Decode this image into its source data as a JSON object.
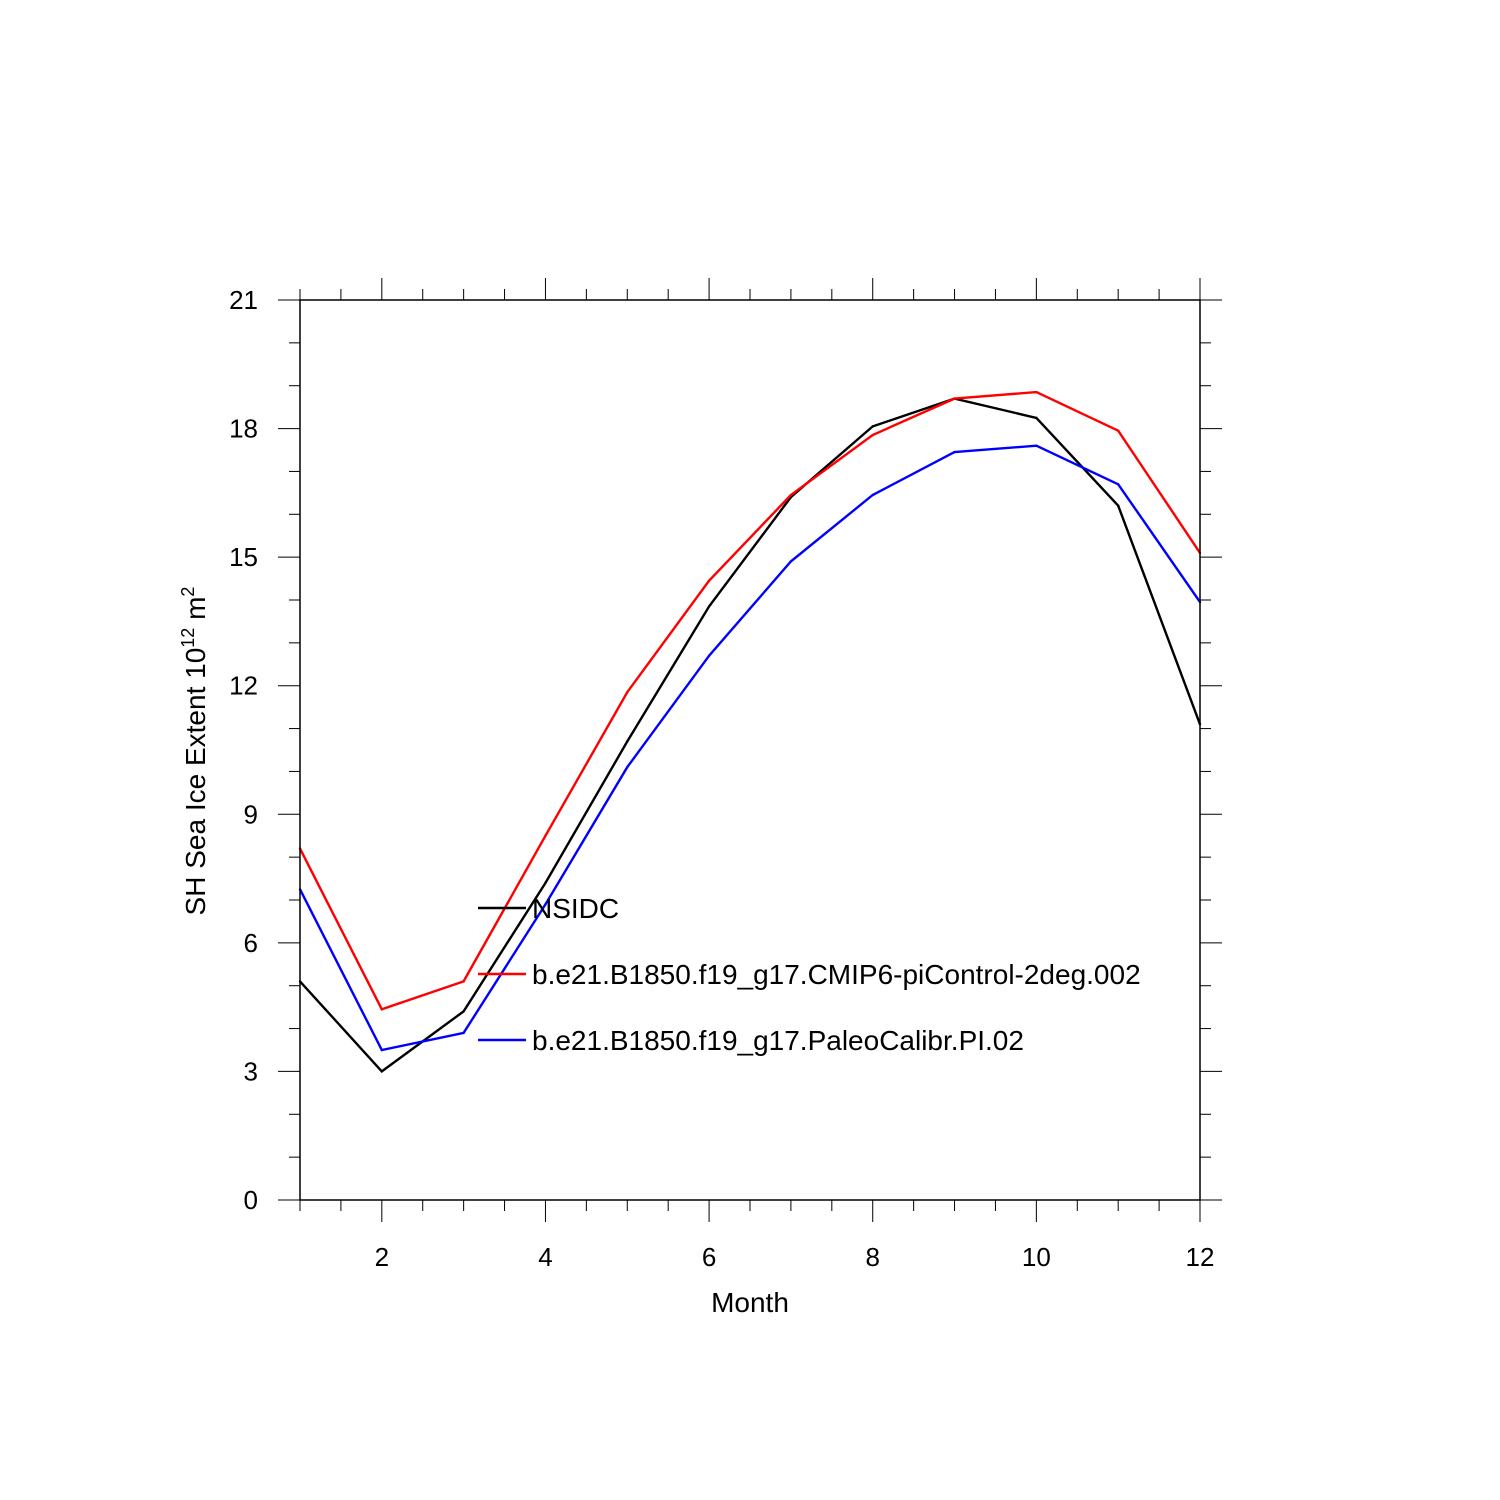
{
  "chart_data": {
    "type": "line",
    "title": "",
    "xlabel": "Month",
    "ylabel": {
      "text": "SH Sea Ice Extent 10",
      "exponent": "12",
      "unit": "m",
      "unit_exponent": "2"
    },
    "xlim": [
      1,
      12
    ],
    "ylim": [
      0,
      21
    ],
    "x_ticks": [
      2,
      4,
      6,
      8,
      10,
      12
    ],
    "y_ticks": [
      0,
      3,
      6,
      9,
      12,
      15,
      18,
      21
    ],
    "x": [
      1,
      2,
      3,
      4,
      5,
      6,
      7,
      8,
      9,
      10,
      11,
      12
    ],
    "series": [
      {
        "name": "NSIDC",
        "color": "#000000",
        "values": [
          5.1,
          3.0,
          4.4,
          7.4,
          10.7,
          13.85,
          16.4,
          18.05,
          18.7,
          18.25,
          16.2,
          11.1
        ]
      },
      {
        "name": "b.e21.B1850.f19_g17.CMIP6-piControl-2deg.002",
        "color": "#ff0000",
        "values": [
          8.2,
          4.45,
          5.1,
          8.5,
          11.85,
          14.45,
          16.45,
          17.85,
          18.7,
          18.85,
          17.95,
          15.1
        ]
      },
      {
        "name": "b.e21.B1850.f19_g17.PaleoCalibr.PI.02",
        "color": "#0000ff",
        "values": [
          7.25,
          3.5,
          3.9,
          6.9,
          10.1,
          12.7,
          14.9,
          16.45,
          17.45,
          17.6,
          16.7,
          13.95
        ]
      }
    ],
    "legend_position": "inside-lower-center",
    "grid": false
  }
}
